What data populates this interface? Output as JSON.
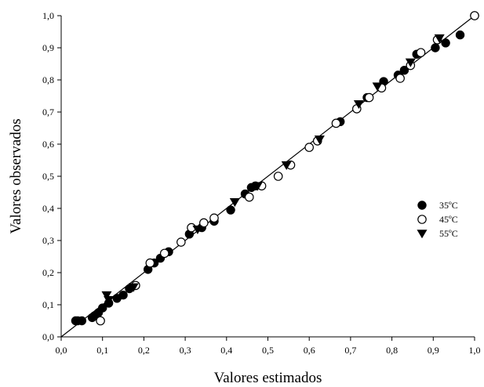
{
  "chart_data": {
    "type": "scatter",
    "xlabel": "Valores estimados",
    "ylabel": "Valores observados",
    "xlim": [
      0,
      1
    ],
    "ylim": [
      0,
      1
    ],
    "xticks": [
      "0,0",
      "0,1",
      "0,2",
      "0,3",
      "0,4",
      "0,5",
      "0,6",
      "0,7",
      "0,8",
      "0,9",
      "1,0"
    ],
    "yticks": [
      "0,0",
      "0,1",
      "0,2",
      "0,3",
      "0,4",
      "0,5",
      "0,6",
      "0,7",
      "0,8",
      "0,9",
      "1,0"
    ],
    "grid": false,
    "legend_position": "right",
    "fit_line": [
      [
        0,
        0
      ],
      [
        1,
        1
      ]
    ],
    "series": [
      {
        "name": "35ºC",
        "marker": "filled-circle",
        "color": "#000000",
        "points": [
          [
            0.035,
            0.05
          ],
          [
            0.04,
            0.05
          ],
          [
            0.05,
            0.05
          ],
          [
            0.075,
            0.06
          ],
          [
            0.08,
            0.065
          ],
          [
            0.09,
            0.075
          ],
          [
            0.1,
            0.09
          ],
          [
            0.115,
            0.105
          ],
          [
            0.135,
            0.12
          ],
          [
            0.15,
            0.13
          ],
          [
            0.165,
            0.15
          ],
          [
            0.21,
            0.21
          ],
          [
            0.225,
            0.23
          ],
          [
            0.24,
            0.245
          ],
          [
            0.26,
            0.265
          ],
          [
            0.31,
            0.32
          ],
          [
            0.34,
            0.34
          ],
          [
            0.37,
            0.36
          ],
          [
            0.41,
            0.395
          ],
          [
            0.445,
            0.445
          ],
          [
            0.46,
            0.465
          ],
          [
            0.47,
            0.47
          ],
          [
            0.675,
            0.67
          ],
          [
            0.74,
            0.745
          ],
          [
            0.78,
            0.795
          ],
          [
            0.815,
            0.815
          ],
          [
            0.83,
            0.83
          ],
          [
            0.86,
            0.88
          ],
          [
            0.905,
            0.9
          ],
          [
            0.93,
            0.915
          ],
          [
            0.965,
            0.94
          ],
          [
            1.0,
            1.0
          ]
        ]
      },
      {
        "name": "45ºC",
        "marker": "open-circle",
        "color": "#000000",
        "points": [
          [
            0.095,
            0.05
          ],
          [
            0.18,
            0.16
          ],
          [
            0.215,
            0.23
          ],
          [
            0.25,
            0.26
          ],
          [
            0.29,
            0.295
          ],
          [
            0.315,
            0.34
          ],
          [
            0.345,
            0.355
          ],
          [
            0.37,
            0.37
          ],
          [
            0.455,
            0.435
          ],
          [
            0.485,
            0.47
          ],
          [
            0.525,
            0.5
          ],
          [
            0.555,
            0.535
          ],
          [
            0.6,
            0.59
          ],
          [
            0.62,
            0.61
          ],
          [
            0.665,
            0.665
          ],
          [
            0.715,
            0.71
          ],
          [
            0.745,
            0.745
          ],
          [
            0.775,
            0.775
          ],
          [
            0.82,
            0.805
          ],
          [
            0.845,
            0.845
          ],
          [
            0.87,
            0.885
          ],
          [
            0.91,
            0.925
          ],
          [
            1.0,
            1.0
          ]
        ]
      },
      {
        "name": "55ºC",
        "marker": "filled-triangle-down",
        "color": "#000000",
        "points": [
          [
            0.11,
            0.13
          ],
          [
            0.115,
            0.115
          ],
          [
            0.175,
            0.155
          ],
          [
            0.33,
            0.335
          ],
          [
            0.42,
            0.42
          ],
          [
            0.475,
            0.47
          ],
          [
            0.545,
            0.535
          ],
          [
            0.625,
            0.615
          ],
          [
            0.72,
            0.725
          ],
          [
            0.765,
            0.78
          ],
          [
            0.845,
            0.855
          ],
          [
            0.915,
            0.93
          ]
        ]
      }
    ]
  }
}
